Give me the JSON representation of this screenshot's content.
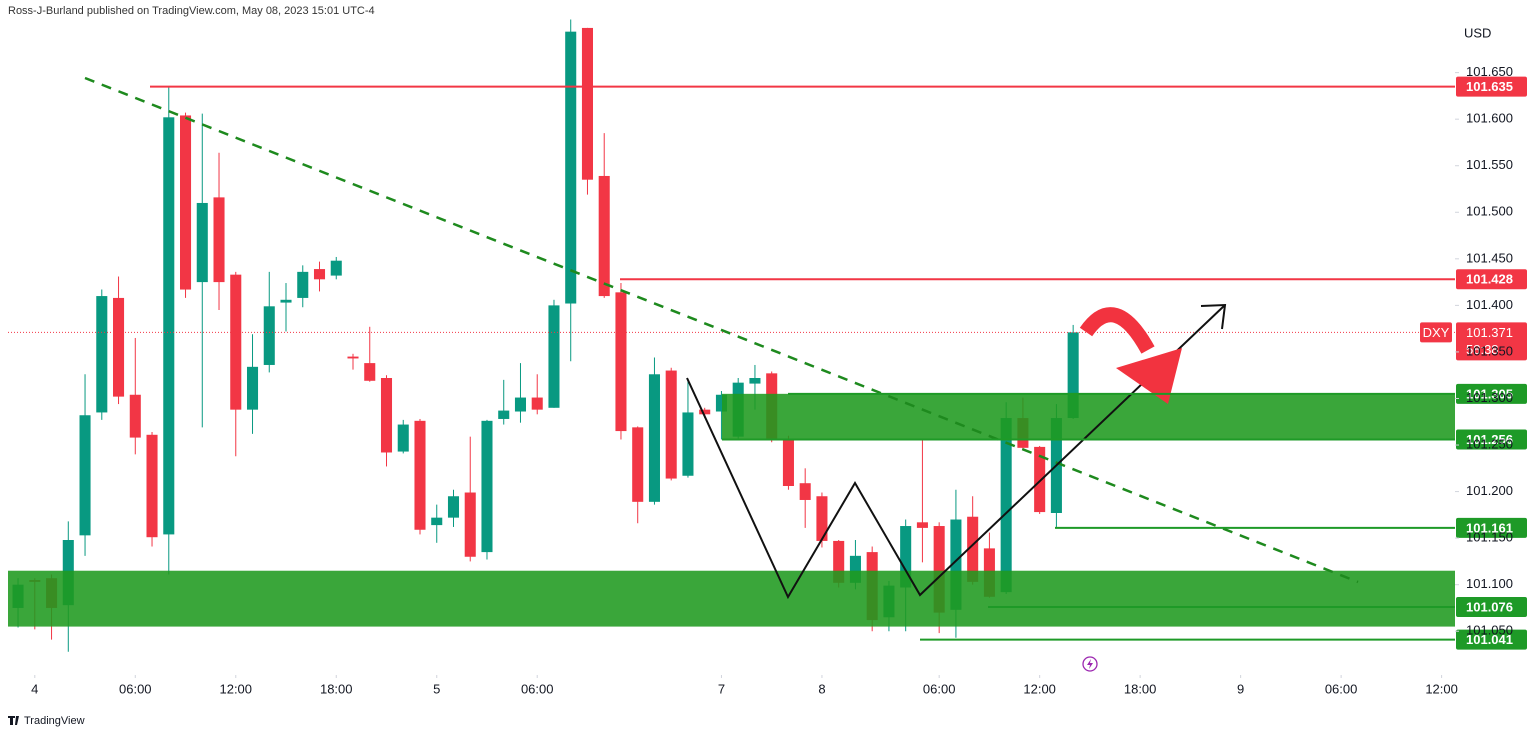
{
  "header": {
    "byline": "Ross-J-Burland published on TradingView.com, May 08, 2023 15:01 UTC-4",
    "currency": "USD",
    "brand": "TradingView"
  },
  "chart_data": {
    "type": "candlestick",
    "symbol": "DXY",
    "open": [
      101.075,
      101.105,
      101.107,
      101.078,
      101.153,
      101.285,
      101.408,
      101.304,
      101.261,
      101.154,
      101.604,
      101.425,
      101.516,
      101.433,
      101.288,
      101.336,
      101.403,
      101.408,
      101.439,
      101.432,
      101.345,
      101.338,
      101.322,
      101.243,
      101.276,
      101.164,
      101.172,
      101.199,
      101.135,
      101.278,
      101.286,
      101.301,
      101.29,
      101.402,
      101.698,
      101.539,
      101.414,
      101.269,
      101.189,
      101.33,
      101.217,
      101.288,
      101.286,
      101.259,
      101.316,
      101.327,
      101.256,
      101.209,
      101.195,
      101.147,
      101.102,
      101.135,
      101.065,
      101.097,
      101.167,
      101.163,
      101.073,
      101.173,
      101.139,
      101.092,
      101.279,
      101.248,
      101.177,
      101.279
    ],
    "high": [
      101.107,
      101.107,
      101.111,
      101.168,
      101.326,
      101.417,
      101.431,
      101.365,
      101.264,
      101.634,
      101.607,
      101.606,
      101.564,
      101.436,
      101.369,
      101.436,
      101.424,
      101.443,
      101.447,
      101.452,
      101.348,
      101.377,
      101.325,
      101.277,
      101.278,
      101.186,
      101.202,
      101.259,
      101.277,
      101.32,
      101.338,
      101.326,
      101.406,
      101.707,
      101.698,
      101.585,
      101.424,
      101.27,
      101.344,
      101.333,
      101.32,
      101.29,
      101.308,
      101.322,
      101.336,
      101.329,
      101.26,
      101.225,
      101.199,
      101.148,
      101.148,
      101.141,
      101.104,
      101.17,
      101.256,
      101.167,
      101.202,
      101.195,
      101.156,
      101.296,
      101.301,
      101.249,
      101.294,
      101.379
    ],
    "low": [
      101.054,
      101.052,
      101.041,
      101.028,
      101.131,
      101.277,
      101.294,
      101.24,
      101.141,
      101.111,
      101.408,
      101.269,
      101.395,
      101.238,
      101.262,
      101.328,
      101.372,
      101.398,
      101.415,
      101.428,
      101.331,
      101.318,
      101.227,
      101.241,
      101.154,
      101.145,
      101.162,
      101.125,
      101.127,
      101.272,
      101.274,
      101.283,
      101.29,
      101.34,
      101.519,
      101.408,
      101.256,
      101.166,
      101.186,
      101.212,
      101.215,
      101.279,
      101.256,
      101.256,
      101.288,
      101.253,
      101.202,
      101.161,
      101.14,
      101.097,
      101.095,
      101.05,
      101.05,
      101.05,
      101.124,
      101.048,
      101.043,
      101.1,
      101.086,
      101.09,
      101.245,
      101.176,
      101.162,
      101.278
    ],
    "close": [
      101.1,
      101.103,
      101.075,
      101.148,
      101.282,
      101.41,
      101.302,
      101.258,
      101.151,
      101.602,
      101.417,
      101.51,
      101.425,
      101.288,
      101.334,
      101.399,
      101.406,
      101.436,
      101.428,
      101.448,
      101.343,
      101.319,
      101.242,
      101.272,
      101.159,
      101.172,
      101.195,
      101.13,
      101.276,
      101.287,
      101.301,
      101.288,
      101.4,
      101.694,
      101.535,
      101.41,
      101.265,
      101.189,
      101.326,
      101.214,
      101.285,
      101.283,
      101.304,
      101.317,
      101.322,
      101.256,
      101.206,
      101.191,
      101.147,
      101.102,
      101.131,
      101.062,
      101.099,
      101.163,
      101.161,
      101.07,
      101.17,
      101.103,
      101.087,
      101.279,
      101.247,
      101.178,
      101.279,
      101.371
    ],
    "up_color": "#089981",
    "down_color": "#f23645",
    "xlim": [
      -0.6,
      85.8
    ],
    "xticks": [
      {
        "value": 1,
        "label": "4"
      },
      {
        "value": 7,
        "label": "06:00"
      },
      {
        "value": 13,
        "label": "12:00"
      },
      {
        "value": 19,
        "label": "18:00"
      },
      {
        "value": 25,
        "label": "5"
      },
      {
        "value": 31,
        "label": "06:00"
      },
      {
        "value": 42,
        "label": "7"
      },
      {
        "value": 48,
        "label": "8"
      },
      {
        "value": 55,
        "label": "06:00"
      },
      {
        "value": 61,
        "label": "12:00"
      },
      {
        "value": 67,
        "label": "18:00"
      },
      {
        "value": 73,
        "label": "9"
      },
      {
        "value": 79,
        "label": "06:00"
      },
      {
        "value": 85,
        "label": "12:00"
      }
    ],
    "ylim": [
      101.003,
      101.728
    ],
    "yticks": [
      {
        "value": 101.05,
        "label": "101.050"
      },
      {
        "value": 101.1,
        "label": "101.100"
      },
      {
        "value": 101.15,
        "label": "101.150"
      },
      {
        "value": 101.2,
        "label": "101.200"
      },
      {
        "value": 101.25,
        "label": "101.250"
      },
      {
        "value": 101.3,
        "label": "101.300"
      },
      {
        "value": 101.35,
        "label": "101.350"
      },
      {
        "value": 101.4,
        "label": "101.400"
      },
      {
        "value": 101.45,
        "label": "101.450"
      },
      {
        "value": 101.5,
        "label": "101.500"
      },
      {
        "value": 101.55,
        "label": "101.550"
      },
      {
        "value": 101.6,
        "label": "101.600"
      },
      {
        "value": 101.65,
        "label": "101.650"
      }
    ],
    "grid": false,
    "last_price": {
      "value": 101.371,
      "countdown": "58:38",
      "color": "#f23645"
    },
    "levels": [
      {
        "value": 101.635,
        "color": "#f23645"
      },
      {
        "value": 101.428,
        "color": "#f23645"
      },
      {
        "value": 101.305,
        "color": "#1e9a27"
      },
      {
        "value": 101.256,
        "color": "#1e9a27"
      },
      {
        "value": 101.161,
        "color": "#1e9a27"
      },
      {
        "value": 101.076,
        "color": "#1e9a27"
      },
      {
        "value": 101.041,
        "color": "#1e9a27"
      }
    ],
    "zones": [
      {
        "low": 101.256,
        "high": 101.305,
        "color": "#1f9a1f"
      },
      {
        "low": 101.055,
        "high": 101.115,
        "color": "#1f9a1f"
      }
    ]
  }
}
